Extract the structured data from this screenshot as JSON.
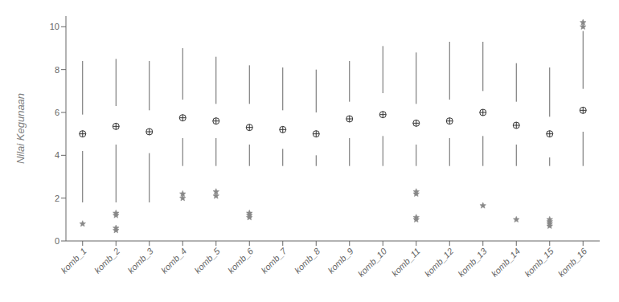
{
  "chart_data": {
    "type": "box",
    "categories": [
      "komb_1",
      "komb_2",
      "komb_3",
      "komb_4",
      "komb_5",
      "komb_6",
      "komb_7",
      "komb_8",
      "komb_9",
      "komb_10",
      "komb_11",
      "komb_12",
      "komb_13",
      "komb_14",
      "komb_15",
      "komb_16"
    ],
    "q1": [
      4.2,
      4.5,
      4.1,
      4.8,
      4.8,
      4.5,
      4.3,
      4.0,
      4.8,
      4.9,
      4.5,
      4.8,
      4.9,
      4.5,
      3.9,
      5.1
    ],
    "median": [
      5.0,
      5.3,
      5.1,
      5.7,
      5.6,
      5.3,
      5.2,
      5.0,
      5.7,
      6.0,
      5.5,
      5.6,
      6.0,
      5.4,
      5.0,
      6.1
    ],
    "q3": [
      5.9,
      6.3,
      6.1,
      6.6,
      6.4,
      6.4,
      6.1,
      6.0,
      6.5,
      6.9,
      6.4,
      6.6,
      7.0,
      6.5,
      5.8,
      7.1
    ],
    "mean": [
      5.0,
      5.35,
      5.1,
      5.75,
      5.6,
      5.3,
      5.2,
      5.0,
      5.7,
      5.9,
      5.5,
      5.6,
      6.0,
      5.4,
      5.0,
      6.1
    ],
    "whislo": [
      1.8,
      1.8,
      1.8,
      3.5,
      3.5,
      3.5,
      3.5,
      3.5,
      3.5,
      3.5,
      3.5,
      3.5,
      3.5,
      3.5,
      3.5,
      3.5
    ],
    "whishi": [
      8.4,
      8.5,
      8.4,
      9.0,
      8.6,
      8.2,
      8.1,
      8.0,
      8.4,
      9.1,
      8.8,
      9.3,
      9.3,
      8.3,
      8.1,
      9.8
    ],
    "fliers": [
      [
        0.8
      ],
      [
        0.5,
        0.6,
        1.2,
        1.3
      ],
      [],
      [
        2.0,
        2.2
      ],
      [
        2.1,
        2.3
      ],
      [
        1.1,
        1.2,
        1.3
      ],
      [],
      [],
      [],
      [],
      [
        1.0,
        1.1,
        2.2,
        2.3
      ],
      [],
      [
        1.65
      ],
      [
        1.0
      ],
      [
        0.7,
        0.8,
        0.9,
        1.0
      ],
      [
        10.0,
        10.2
      ]
    ],
    "ylabel": "Nilai Kegunaan",
    "ylim": [
      0,
      10.5
    ],
    "yticks": [
      0,
      2,
      4,
      6,
      8,
      10
    ],
    "color": "#7aadcf",
    "grid": false
  }
}
